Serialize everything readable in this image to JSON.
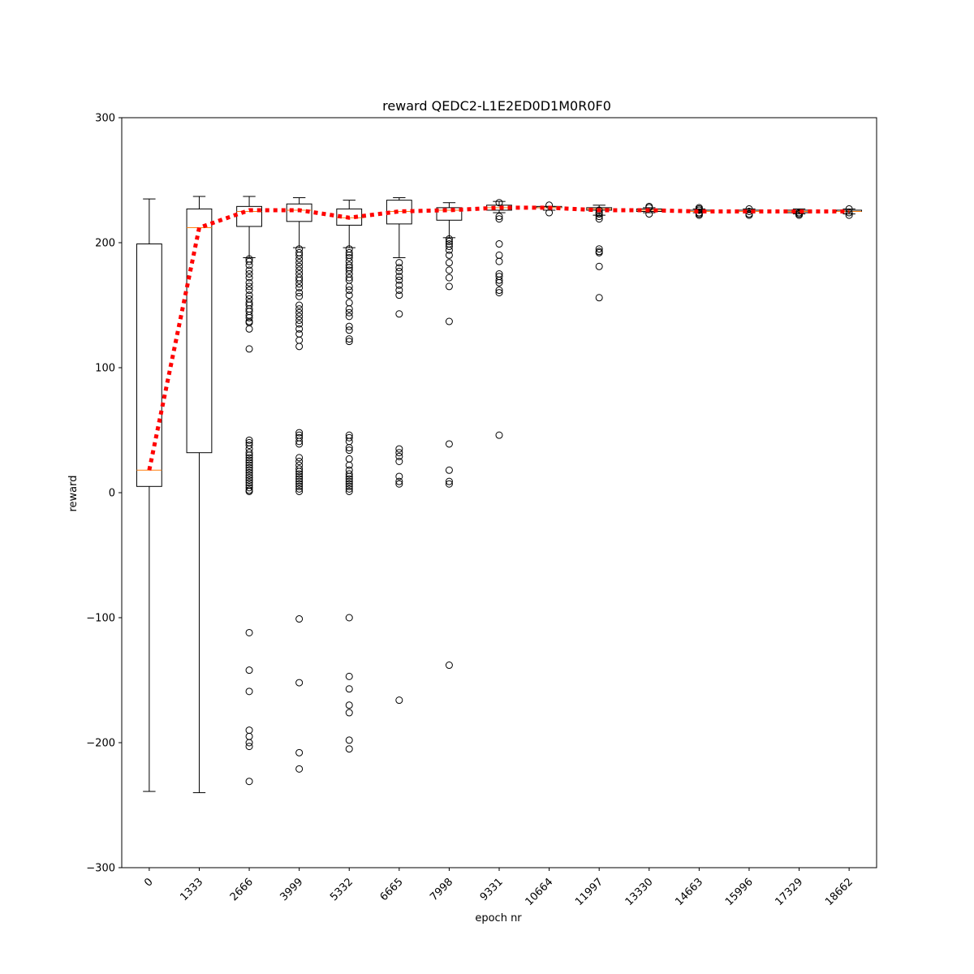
{
  "chart_data": {
    "type": "box",
    "title": "reward QEDC2-L1E2ED0D1M0R0F0",
    "xlabel": "epoch nr",
    "ylabel": "reward",
    "ylim": [
      -300,
      300
    ],
    "yticks": [
      -300,
      -200,
      -100,
      0,
      100,
      200,
      300
    ],
    "ytick_labels": [
      "−300",
      "−200",
      "−100",
      "0",
      "100",
      "200",
      "300"
    ],
    "categories": [
      "0",
      "1333",
      "2666",
      "3999",
      "5332",
      "6665",
      "7998",
      "9331",
      "10664",
      "11997",
      "13330",
      "14663",
      "15996",
      "17329",
      "18662"
    ],
    "boxes": [
      {
        "whislo": -239,
        "q1": 5,
        "med": 18,
        "q3": 199,
        "whishi": 235,
        "fliers": []
      },
      {
        "whislo": -240,
        "q1": 32,
        "med": 212,
        "q3": 227,
        "whishi": 237,
        "fliers": []
      },
      {
        "whislo": 188,
        "q1": 213,
        "med": 225,
        "q3": 229,
        "whishi": 237,
        "fliers": [
          187,
          185,
          182,
          178,
          175,
          172,
          168,
          165,
          162,
          158,
          155,
          152,
          150,
          147,
          145,
          142,
          140,
          137,
          136,
          131,
          115,
          42,
          40,
          38,
          35,
          32,
          30,
          28,
          26,
          24,
          22,
          20,
          18,
          16,
          14,
          12,
          10,
          8,
          6,
          4,
          2,
          1,
          -112,
          -142,
          -159,
          -190,
          -195,
          -200,
          -203,
          -231
        ]
      },
      {
        "whislo": 196,
        "q1": 217,
        "med": 226,
        "q3": 231,
        "whishi": 236,
        "fliers": [
          195,
          192,
          190,
          187,
          184,
          181,
          178,
          175,
          172,
          170,
          167,
          164,
          160,
          157,
          150,
          147,
          144,
          141,
          138,
          135,
          131,
          127,
          122,
          117,
          48,
          46,
          44,
          41,
          39,
          28,
          25,
          22,
          19,
          17,
          15,
          13,
          11,
          9,
          7,
          5,
          3,
          1,
          -101,
          -152,
          -208,
          -221
        ]
      },
      {
        "whislo": 196,
        "q1": 214,
        "med": 220,
        "q3": 227,
        "whishi": 234,
        "fliers": [
          195,
          192,
          190,
          188,
          185,
          182,
          180,
          178,
          175,
          172,
          170,
          165,
          162,
          158,
          152,
          147,
          144,
          141,
          133,
          130,
          123,
          121,
          46,
          44,
          41,
          36,
          34,
          27,
          22,
          18,
          15,
          13,
          11,
          9,
          7,
          5,
          3,
          1,
          -100,
          -147,
          -157,
          -170,
          -176,
          -198,
          -205
        ]
      },
      {
        "whislo": 188,
        "q1": 215,
        "med": 225,
        "q3": 234,
        "whishi": 236,
        "fliers": [
          184,
          180,
          177,
          173,
          170,
          166,
          162,
          158,
          143,
          35,
          32,
          29,
          25,
          13,
          9,
          7,
          -166
        ]
      },
      {
        "whislo": 204,
        "q1": 218,
        "med": 226,
        "q3": 228,
        "whishi": 232,
        "fliers": [
          203,
          201,
          199,
          197,
          194,
          190,
          184,
          178,
          172,
          165,
          137,
          39,
          18,
          9,
          7,
          -138
        ]
      },
      {
        "whislo": 224,
        "q1": 226,
        "med": 228,
        "q3": 230,
        "whishi": 233,
        "fliers": [
          232,
          221,
          219,
          199,
          190,
          185,
          175,
          173,
          170,
          168,
          162,
          160,
          46
        ]
      },
      {
        "whislo": 226,
        "q1": 228,
        "med": 228,
        "q3": 229,
        "whishi": 229,
        "fliers": [
          230,
          224
        ]
      },
      {
        "whislo": 222,
        "q1": 226,
        "med": 227,
        "q3": 228,
        "whishi": 230,
        "fliers": [
          226,
          224,
          223,
          221,
          219,
          195,
          193,
          192,
          181,
          156
        ]
      },
      {
        "whislo": 224,
        "q1": 225,
        "med": 226,
        "q3": 227,
        "whishi": 228,
        "fliers": [
          229,
          228,
          223
        ]
      },
      {
        "whislo": 224,
        "q1": 225,
        "med": 225,
        "q3": 226,
        "whishi": 227,
        "fliers": [
          228,
          227,
          226,
          224,
          223,
          222
        ]
      },
      {
        "whislo": 224,
        "q1": 225,
        "med": 225,
        "q3": 226,
        "whishi": 227,
        "fliers": [
          227,
          225,
          223,
          222
        ]
      },
      {
        "whislo": 223,
        "q1": 224,
        "med": 225,
        "q3": 226,
        "whishi": 227,
        "fliers": [
          224,
          223,
          222
        ]
      },
      {
        "whislo": 223,
        "q1": 225,
        "med": 225,
        "q3": 226,
        "whishi": 227,
        "fliers": [
          227,
          224,
          222
        ]
      }
    ],
    "mean_line": {
      "values": [
        18,
        212,
        226,
        226,
        220,
        225,
        226,
        228,
        228,
        226,
        226,
        225,
        225,
        225,
        225
      ],
      "color": "#ff0000",
      "style": "dotted"
    },
    "colors": {
      "box": "#000000",
      "median": "#ff7f0e",
      "mean": "#ff0000"
    }
  }
}
